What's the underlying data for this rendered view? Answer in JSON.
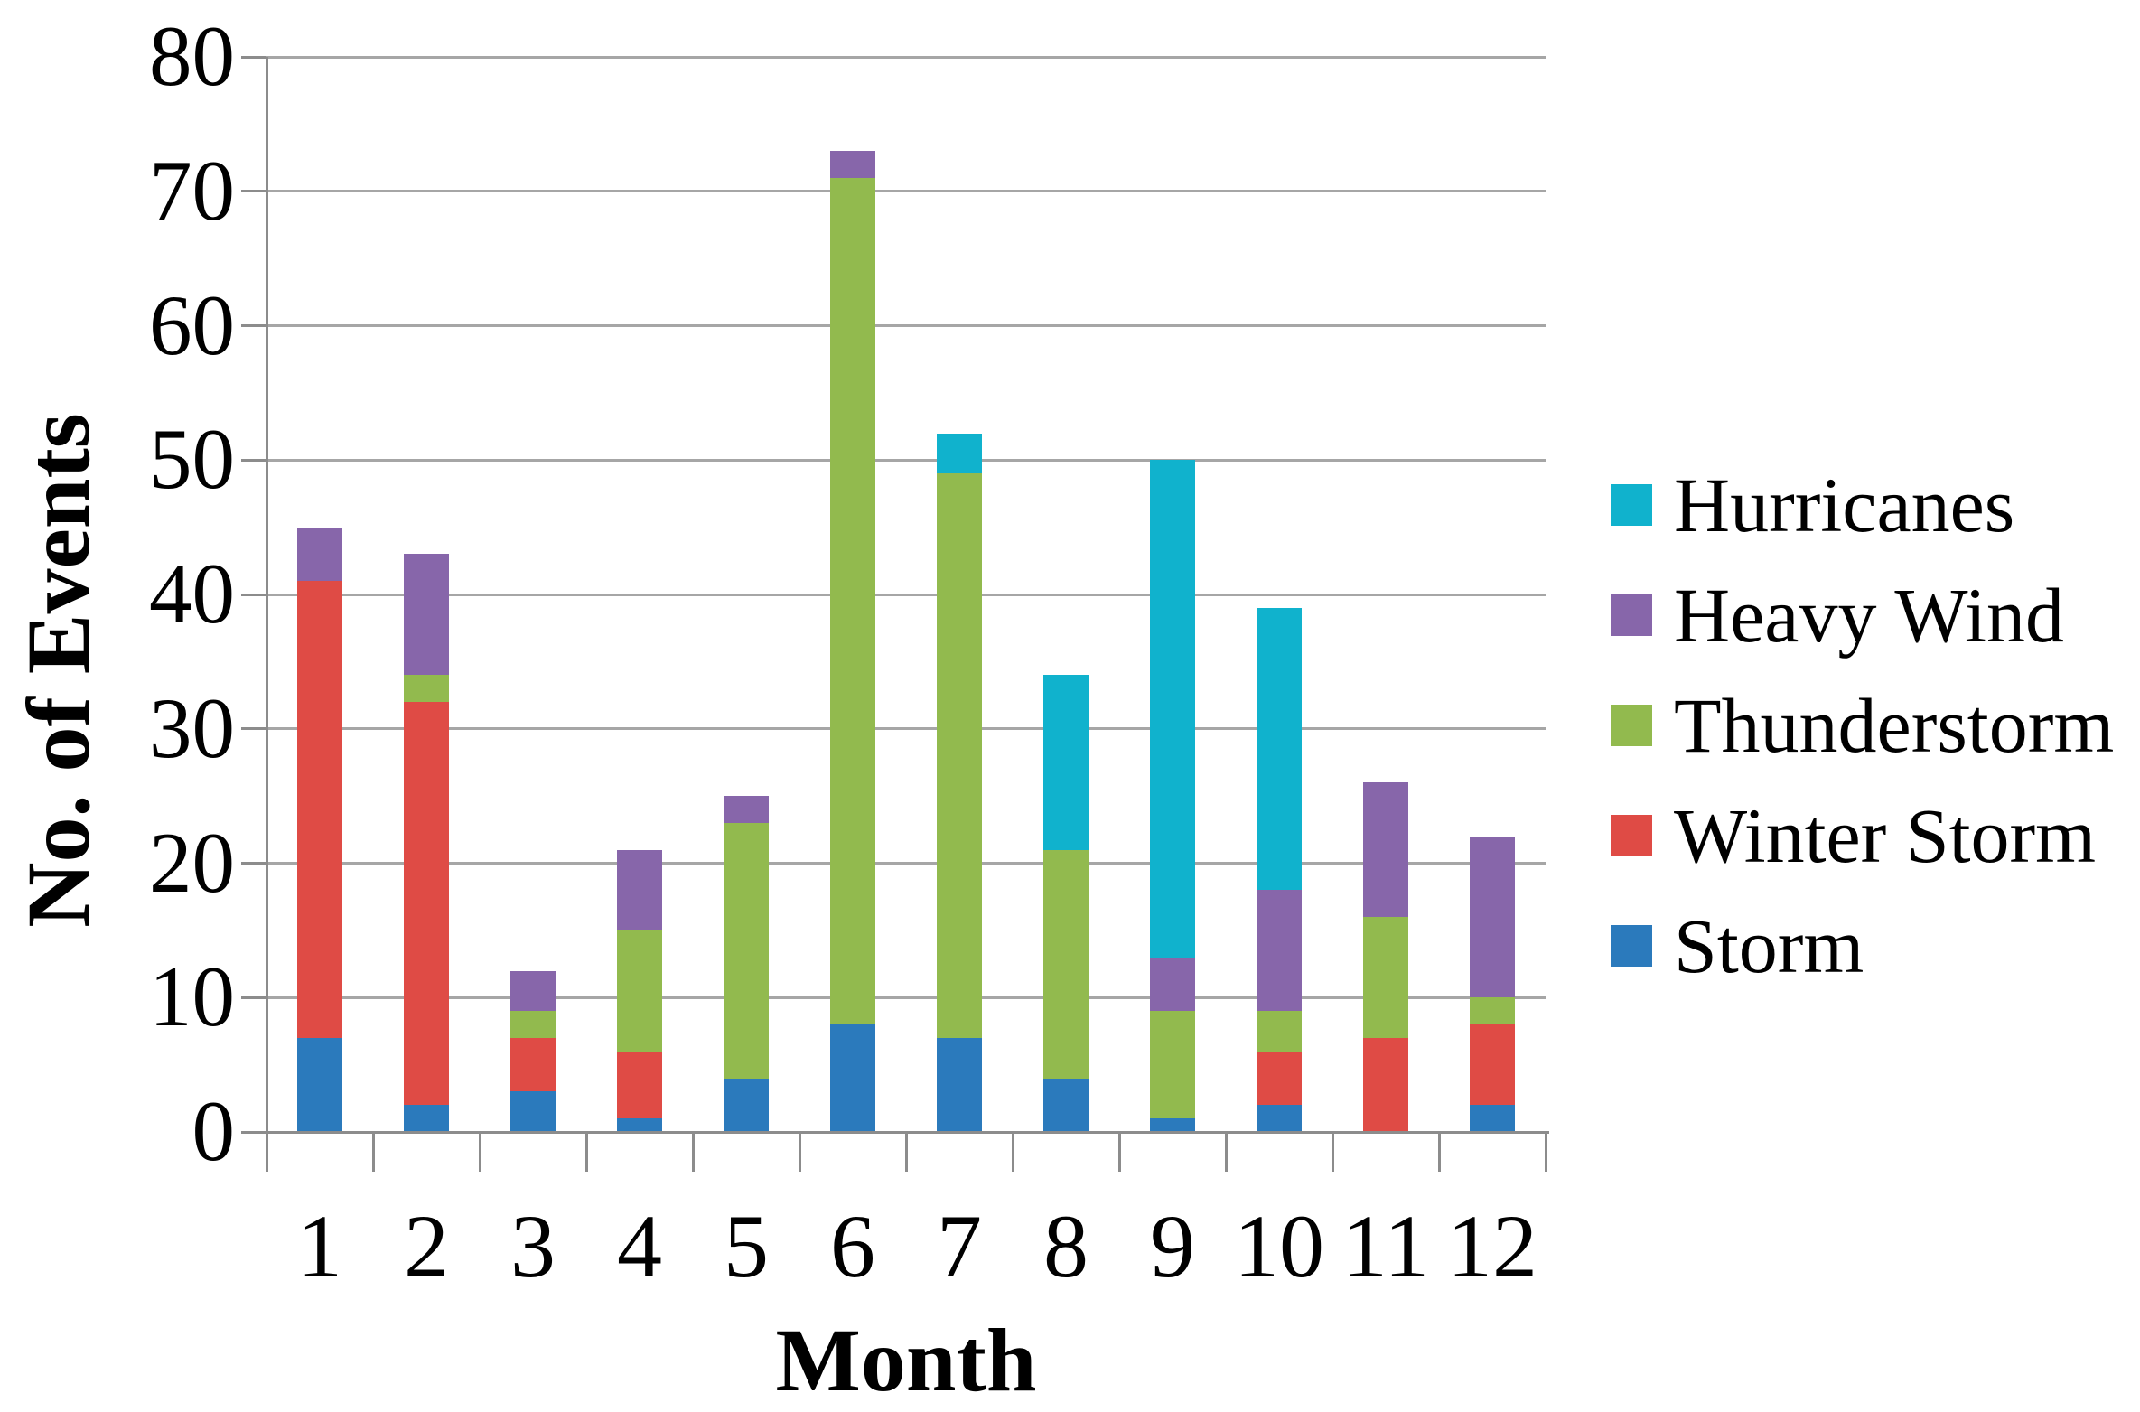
{
  "chart_data": {
    "type": "bar",
    "stacked": true,
    "xlabel": "Month",
    "ylabel": "No. of Events",
    "categories": [
      "1",
      "2",
      "3",
      "4",
      "5",
      "6",
      "7",
      "8",
      "9",
      "10",
      "11",
      "12"
    ],
    "y_ticks": [
      0,
      10,
      20,
      30,
      40,
      50,
      60,
      70,
      80
    ],
    "ylim": [
      0,
      80
    ],
    "grid": true,
    "legend_position": "right",
    "legend_order_top_to_bottom": [
      "Hurricanes",
      "Heavy Wind",
      "Thunderstorm",
      "Winter Storm",
      "Storm"
    ],
    "series": [
      {
        "name": "Storm",
        "color": "#2b7abc",
        "values": [
          7,
          2,
          3,
          1,
          4,
          8,
          7,
          4,
          1,
          2,
          0,
          2
        ]
      },
      {
        "name": "Winter Storm",
        "color": "#df4b45",
        "values": [
          34,
          30,
          4,
          5,
          0,
          0,
          0,
          0,
          0,
          4,
          7,
          6
        ]
      },
      {
        "name": "Thunderstorm",
        "color": "#92ba4e",
        "values": [
          0,
          2,
          2,
          9,
          19,
          63,
          42,
          17,
          8,
          3,
          9,
          2
        ]
      },
      {
        "name": "Heavy Wind",
        "color": "#8766aa",
        "values": [
          4,
          9,
          3,
          6,
          2,
          2,
          0,
          0,
          4,
          9,
          10,
          12
        ]
      },
      {
        "name": "Hurricanes",
        "color": "#10b2cd",
        "values": [
          0,
          0,
          0,
          0,
          0,
          0,
          3,
          13,
          37,
          21,
          0,
          0
        ]
      }
    ],
    "stack_totals": [
      45,
      43,
      12,
      21,
      25,
      73,
      52,
      34,
      50,
      39,
      26,
      22
    ],
    "colors": {
      "gridline": "#a6a6a6",
      "axis": "#8c8c8c",
      "text": "#000000"
    }
  }
}
